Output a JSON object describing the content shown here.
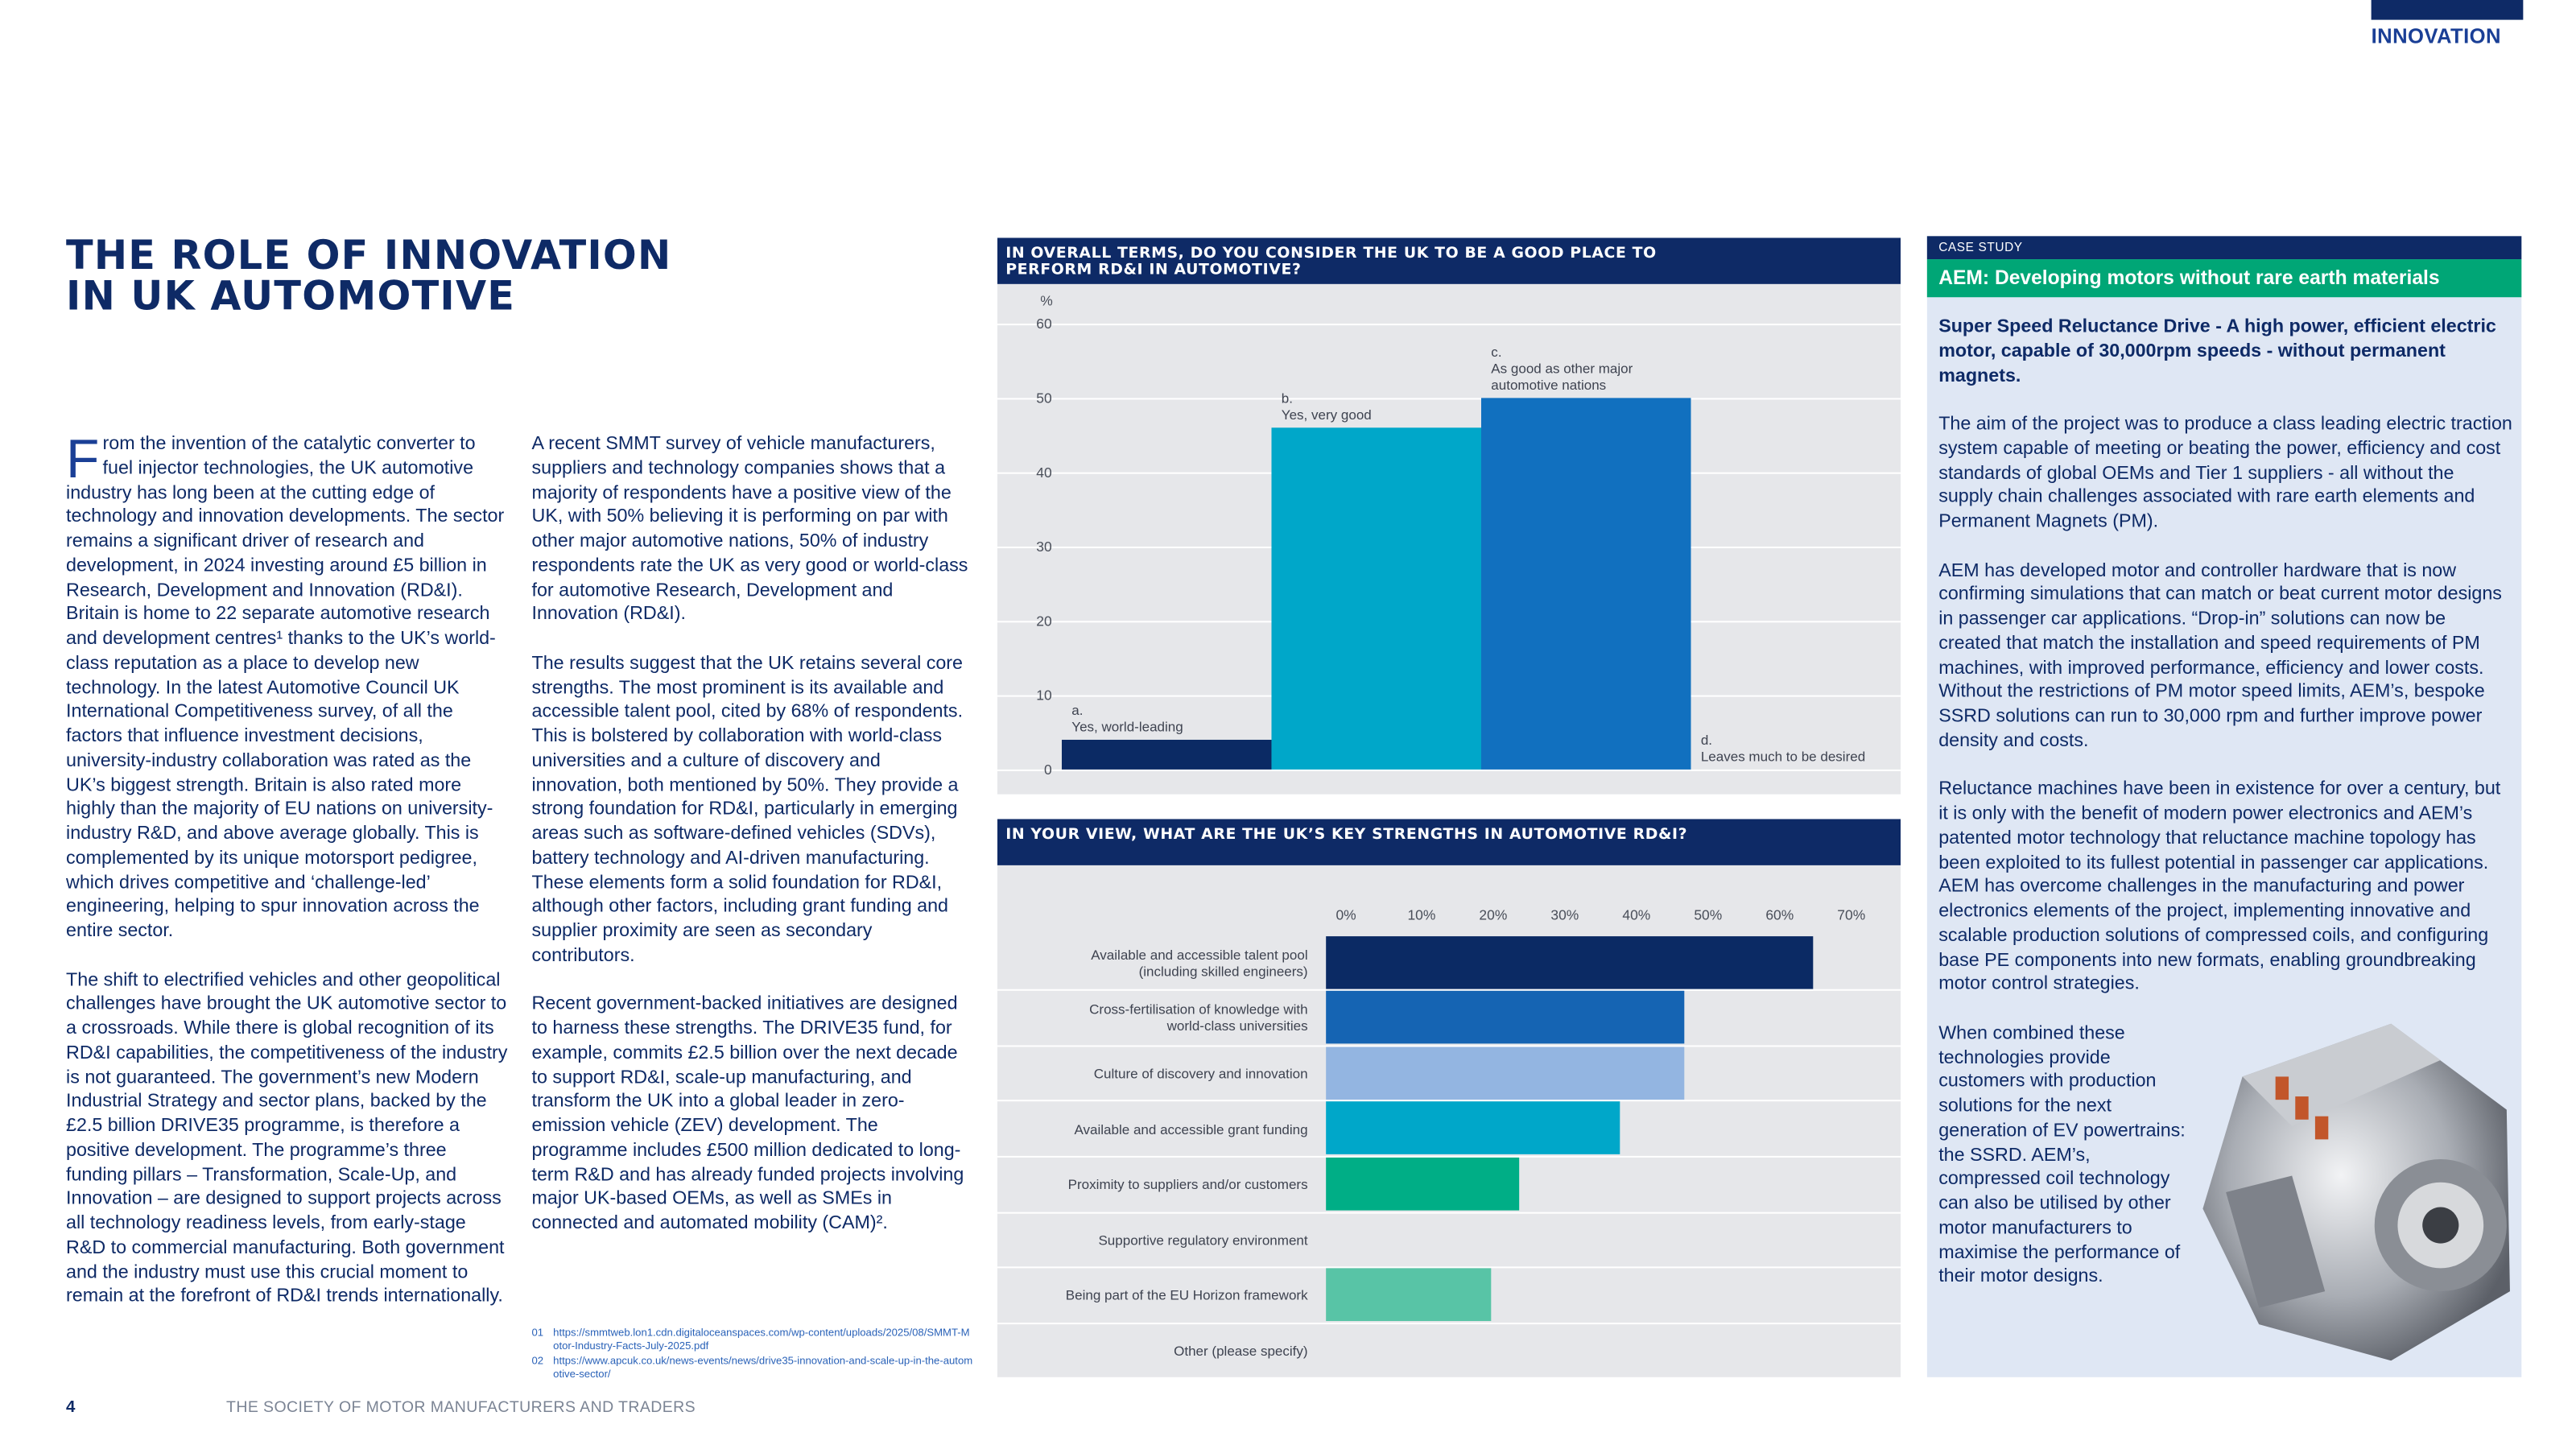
{
  "header": {
    "section": "INNOVATION"
  },
  "title": {
    "lines": [
      "THE ROLE OF INNOVATION",
      "IN UK AUTOMOTIVE"
    ]
  },
  "columns": [
    {
      "paragraphs": [
        "From the invention of the catalytic converter to fuel injector technologies, the UK automotive industry has long been at the cutting edge of technology and innovation developments. The sector remains a significant driver of research and development, in 2024 investing around £5 billion in Research, Development and Innovation (RD&I). Britain is home to 22 separate automotive research and development centres¹ thanks to the UK’s world-class reputation as a place to develop new technology. In the latest Automotive Council UK International Competitiveness survey, of all the factors that influence investment decisions, university-industry collaboration was rated as the UK’s biggest strength. Britain is also rated more highly than the majority of EU nations on university-industry R&D, and above average globally. This is complemented by its unique motorsport pedigree, which drives competitive and ‘challenge-led’ engineering, helping to spur innovation across the entire sector.",
        "The shift to electrified vehicles and other geopolitical challenges have brought the UK automotive sector to a crossroads. While there is global recognition of its RD&I capabilities, the competitiveness of the industry is not guaranteed. The government’s new Modern Industrial Strategy and sector plans, backed by the £2.5 billion DRIVE35 programme, is therefore a positive development. The programme’s three funding pillars – Transformation, Scale-Up, and Innovation – are designed to support projects across all technology readiness levels, from early-stage R&D to commercial manufacturing. Both government and the industry must use this crucial moment to remain at the forefront of RD&I trends internationally."
      ]
    },
    {
      "paragraphs": [
        "A recent SMMT survey of vehicle manufacturers, suppliers and technology companies shows that a majority of respondents have a positive view of the UK, with 50% believing it is performing on par with other major automotive nations, 50% of industry respondents rate the UK as very good or world-class for automotive Research, Development and Innovation (RD&I).",
        "The results suggest that the UK retains several core strengths. The most prominent is its available and accessible talent pool, cited by 68% of respondents. This is bolstered by collaboration with world-class universities and a culture of discovery and innovation, both mentioned by 50%. They provide a strong foundation for RD&I, particularly in emerging areas such as software-defined vehicles (SDVs), battery technology and AI-driven manufacturing. These elements form a solid foundation for RD&I, although other factors, including grant funding and supplier proximity are seen as secondary contributors.",
        "Recent government-backed initiatives are designed to harness these strengths. The DRIVE35 fund, for example, commits £2.5 billion over the next decade to support RD&I, scale-up manufacturing, and transform the UK into a global leader in zero-emission vehicle (ZEV) development. The programme includes £500 million dedicated to long-term R&D and has already funded projects involving major UK-based OEMs, as well as SMEs in connected and automated mobility (CAM)²."
      ]
    }
  ],
  "footnotes": [
    {
      "number": "01",
      "text": "https://smmtweb.lon1.cdn.digitaloceanspaces.com/wp-content/uploads/2025/08/SMMT-Motor-Industry-Facts-July-2025.pdf"
    },
    {
      "number": "02",
      "text": "https://www.apcuk.co.uk/news-events/news/drive35-innovation-and-scale-up-in-the-automotive-sector/"
    }
  ],
  "footer": {
    "page": "4",
    "publisher": "THE SOCIETY OF MOTOR MANUFACTURERS AND TRADERS"
  },
  "chart_data": [
    {
      "type": "bar",
      "title": "IN OVERALL TERMS, DO YOU CONSIDER THE UK TO BE A GOOD PLACE TO PERFORM RD&I IN AUTOMOTIVE?",
      "y_label": "%",
      "categories": [
        "a.\nYes, world-leading",
        "b.\nYes, very good",
        "c.\nAs good as other major\nautomotive nations",
        "d.\nLeaves much to be desired"
      ],
      "values": [
        4,
        46,
        50,
        0
      ],
      "colors": [
        "#0b2a64",
        "#00a7c9",
        "#1170bf",
        "#1170bf"
      ],
      "ylim": [
        0,
        65
      ],
      "yticks": [
        0,
        10,
        20,
        30,
        40,
        50,
        60
      ],
      "grid": true
    },
    {
      "type": "barh",
      "title": "IN YOUR VIEW, WHAT ARE THE UK’S KEY STRENGTHS IN AUTOMOTIVE RD&I?",
      "categories": [
        "Available and accessible talent pool\n(including skilled engineers)",
        "Cross-fertilisation of knowledge with\nworld-class universities",
        "Culture of discovery and innovation",
        "Available and accessible grant funding",
        "Proximity to suppliers and/or customers",
        "Supportive regulatory environment",
        "Being part of the EU Horizon framework",
        "Other (please specify)"
      ],
      "values": [
        68,
        50,
        50,
        41,
        27,
        0,
        23,
        0
      ],
      "colors": [
        "#0b2a64",
        "#1564b3",
        "#93b5e1",
        "#00a7c9",
        "#00ae86",
        "#00ae86",
        "#58c4a6",
        "#58c4a6"
      ],
      "xlim": [
        0,
        80
      ],
      "xticks": [
        {
          "value": 0,
          "label": "0%"
        },
        {
          "value": 10,
          "label": "10%"
        },
        {
          "value": 20,
          "label": "20%"
        },
        {
          "value": 30,
          "label": "30%"
        },
        {
          "value": 40,
          "label": "40%"
        },
        {
          "value": 50,
          "label": "50%"
        },
        {
          "value": 60,
          "label": "60%"
        },
        {
          "value": 70,
          "label": "70%"
        }
      ]
    }
  ],
  "case_study": {
    "label": "CASE STUDY",
    "title": "AEM: Developing motors without rare earth materials",
    "lead": "Super Speed Reluctance Drive - A high power, efficient electric motor, capable of 30,000rpm speeds - without permanent magnets.",
    "paragraphs": [
      "The aim of the project was to produce a class leading electric traction system capable of meeting or beating the power, efficiency and cost standards of global OEMs and Tier 1 suppliers - all without the supply chain challenges associated with rare earth elements and Permanent Magnets (PM).",
      "AEM has developed motor and controller hardware that is now confirming simulations that can match or beat current motor designs in passenger car applications. “Drop-in” solutions can now be created that match the installation and speed requirements of PM machines, with improved performance, efficiency and lower costs. Without the restrictions of PM motor speed limits, AEM’s, bespoke SSRD solutions can run to 30,000 rpm and further improve power density and costs.",
      "Reluctance machines have been in existence for over a century, but it is only with the benefit of modern power electronics and AEM’s patented motor technology that reluctance machine topology has been exploited to its fullest potential in passenger car applications. AEM has overcome challenges in the manufacturing and power electronics elements of the project, implementing innovative and scalable production solutions of compressed coils, and configuring base PE components into new formats, enabling groundbreaking motor control strategies.",
      "When combined these technologies provide customers with production solutions for the next generation of EV powertrains: the SSRD. AEM’s, compressed coil technology can also be utilised by other motor manufacturers to maximise the performance of their motor designs."
    ]
  }
}
